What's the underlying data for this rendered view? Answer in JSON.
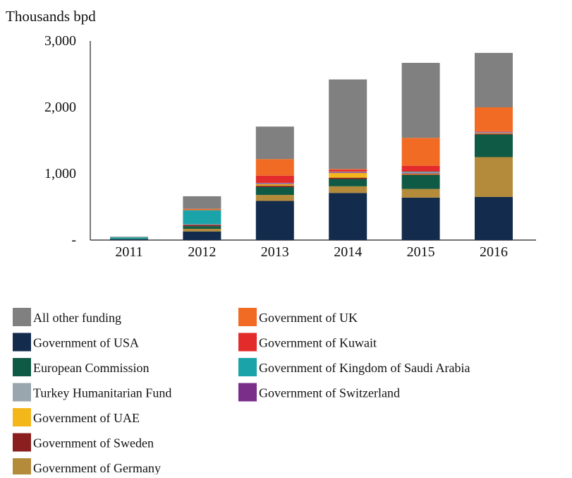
{
  "chart_data": {
    "type": "bar",
    "stacked": true,
    "ylabel": "Thousands bpd",
    "ylim": [
      0,
      3000
    ],
    "y_ticks": [
      {
        "value": 3000,
        "label": "3,000"
      },
      {
        "value": 2000,
        "label": "2,000"
      },
      {
        "value": 1000,
        "label": "1,000"
      },
      {
        "value": 0,
        "label": "-"
      }
    ],
    "categories": [
      "2011",
      "2012",
      "2013",
      "2014",
      "2015",
      "2016"
    ],
    "series": [
      {
        "name": "Government of USA",
        "color": "#132b4c",
        "values": [
          10,
          130,
          590,
          710,
          640,
          650
        ]
      },
      {
        "name": "Government of Germany",
        "color": "#b48b3a",
        "values": [
          0,
          40,
          90,
          100,
          130,
          600
        ]
      },
      {
        "name": "European Commission",
        "color": "#0f5a45",
        "values": [
          10,
          40,
          120,
          110,
          210,
          340
        ]
      },
      {
        "name": "Government of Sweden",
        "color": "#8b1e1e",
        "values": [
          0,
          20,
          20,
          20,
          10,
          10
        ]
      },
      {
        "name": "Government of UAE",
        "color": "#f4b71a",
        "values": [
          0,
          0,
          20,
          70,
          10,
          10
        ]
      },
      {
        "name": "Government of Switzerland",
        "color": "#7a2e8a",
        "values": [
          0,
          0,
          10,
          10,
          10,
          10
        ]
      },
      {
        "name": "Turkey Humanitarian Fund",
        "color": "#9aa6ae",
        "values": [
          0,
          10,
          10,
          10,
          10,
          10
        ]
      },
      {
        "name": "Government of Kingdom of Saudi Arabia",
        "color": "#1aa3a8",
        "values": [
          20,
          210,
          0,
          0,
          10,
          0
        ]
      },
      {
        "name": "Government of Kuwait",
        "color": "#e32b2b",
        "values": [
          0,
          0,
          110,
          30,
          90,
          10
        ]
      },
      {
        "name": "Government of UK",
        "color": "#f26b25",
        "values": [
          0,
          20,
          250,
          10,
          420,
          360
        ]
      },
      {
        "name": "All other funding",
        "color": "#808080",
        "values": [
          10,
          190,
          490,
          1350,
          1130,
          820
        ]
      }
    ],
    "legend": {
      "placement": "bottom",
      "columns": [
        [
          "All other funding",
          "Government of USA",
          "European Commission",
          "Turkey Humanitarian Fund",
          "Government of UAE",
          "Government of Sweden",
          "Government of Germany"
        ],
        [
          "Government of UK",
          "Government of Kuwait",
          "Government of Kingdom of Saudi Arabia",
          "Government of Switzerland"
        ]
      ]
    },
    "grid": false
  }
}
